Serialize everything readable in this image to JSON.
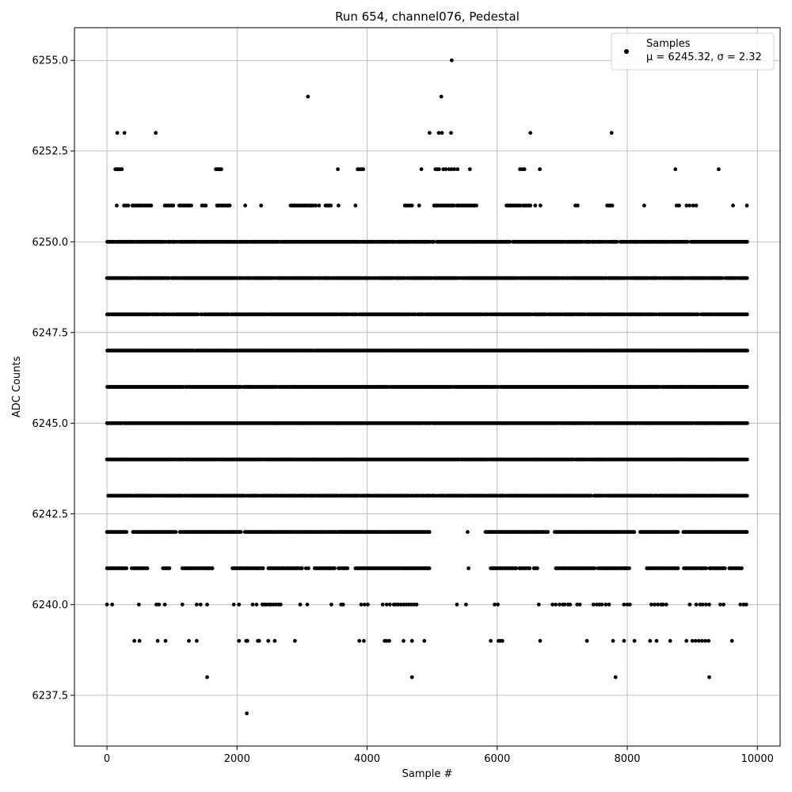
{
  "chart_data": {
    "type": "scatter",
    "title": "Run 654, channel076, Pedestal",
    "xlabel": "Sample #",
    "ylabel": "ADC Counts",
    "xlim": [
      -500,
      10350
    ],
    "ylim": [
      6236.1,
      6255.9
    ],
    "xticks": [
      0,
      2000,
      4000,
      6000,
      8000,
      10000
    ],
    "xtick_labels": [
      "0",
      "2000",
      "4000",
      "6000",
      "8000",
      "10000"
    ],
    "yticks": [
      6237.5,
      6240.0,
      6242.5,
      6245.0,
      6247.5,
      6250.0,
      6252.5,
      6255.0
    ],
    "ytick_labels": [
      "6237.5",
      "6240.0",
      "6242.5",
      "6245.0",
      "6247.5",
      "6250.0",
      "6252.5",
      "6255.0"
    ],
    "grid": true,
    "legend": {
      "position": "top-right",
      "entries": [
        {
          "marker": "dot",
          "line1": "Samples",
          "line2": "μ = 6245.32, σ = 2.32"
        }
      ]
    },
    "series": [
      {
        "name": "Samples",
        "color": "#000000",
        "n_points": 9856,
        "x_range": [
          0,
          9855
        ],
        "levels": {
          "6237": [
            2150
          ],
          "6238": [
            1540,
            4690,
            7820,
            9260
          ],
          "6239": [
            420,
            500,
            780,
            900,
            1260,
            1380,
            2030,
            2140,
            2160,
            2320,
            2340,
            2480,
            2580,
            2890,
            3880,
            3950,
            4270,
            4300,
            4340,
            4560,
            4690,
            4880,
            5900,
            6020,
            6050,
            6080,
            6660,
            7380,
            7780,
            7950,
            8110,
            8350,
            8450,
            8660,
            8910,
            9000,
            9050,
            9100,
            9150,
            9200,
            9250,
            9610
          ],
          "6240": [
            0,
            80,
            490,
            760,
            800,
            890,
            1160,
            1380,
            1440,
            1540,
            1950,
            2030,
            2240,
            2300,
            2390,
            2420,
            2450,
            2490,
            2520,
            2560,
            2600,
            2640,
            2670,
            2970,
            3080,
            3450,
            3600,
            3630,
            3910,
            3960,
            4010,
            4240,
            4300,
            4350,
            4410,
            4440,
            4480,
            4520,
            4560,
            4600,
            4640,
            4680,
            4720,
            4760,
            5380,
            5520,
            5960,
            6010,
            6640,
            6850,
            6900,
            6960,
            7010,
            7040,
            7090,
            7120,
            7230,
            7270,
            7480,
            7530,
            7570,
            7610,
            7670,
            7720,
            7950,
            8000,
            8040,
            8370,
            8420,
            8470,
            8520,
            8550,
            8600,
            8960,
            9060,
            9120,
            9160,
            9210,
            9260,
            9430,
            9480,
            9740,
            9790,
            9830
          ],
          "6253": [
            160,
            270,
            750,
            4960,
            5100,
            5150,
            5290,
            6510,
            7760
          ],
          "6254": [
            3090,
            5140
          ],
          "6255": [
            5300
          ]
        },
        "sparse_levels": {
          "6241": {
            "ranges": [
              [
                0,
                300
              ],
              [
                380,
                620
              ],
              [
                860,
                960
              ],
              [
                1160,
                1620
              ],
              [
                1930,
                2400
              ],
              [
                2480,
                3000
              ],
              [
                3060,
                3100
              ],
              [
                3190,
                3500
              ],
              [
                3560,
                3700
              ],
              [
                3820,
                4960
              ],
              [
                5560,
                5560
              ],
              [
                5900,
                6290
              ],
              [
                6340,
                6500
              ],
              [
                6560,
                6620
              ],
              [
                6900,
                7500
              ],
              [
                7550,
                8030
              ],
              [
                8300,
                8780
              ],
              [
                8870,
                9210
              ],
              [
                9260,
                9500
              ],
              [
                9570,
                9760
              ]
            ]
          },
          "6242": {
            "ranges": [
              [
                0,
                300
              ],
              [
                400,
                1060
              ],
              [
                1120,
                2060
              ],
              [
                2120,
                2850
              ],
              [
                2880,
                3880
              ],
              [
                3590,
                4960
              ],
              [
                5530,
                5560
              ],
              [
                5820,
                6470
              ],
              [
                6500,
                6780
              ],
              [
                6880,
                8110
              ],
              [
                8200,
                8780
              ],
              [
                8860,
                9840
              ]
            ]
          },
          "6251": {
            "ranges": [
              [
                140,
                160
              ],
              [
                260,
                330
              ],
              [
                390,
                680
              ],
              [
                890,
                1020
              ],
              [
                1110,
                1300
              ],
              [
                1460,
                1520
              ],
              [
                1690,
                1890
              ],
              [
                2120,
                2130
              ],
              [
                2360,
                2380
              ],
              [
                2820,
                3170
              ],
              [
                3210,
                3260
              ],
              [
                3360,
                3440
              ],
              [
                3550,
                3570
              ],
              [
                3810,
                3830
              ],
              [
                4580,
                4690
              ],
              [
                4800,
                4800
              ],
              [
                5030,
                5340
              ],
              [
                5380,
                5680
              ],
              [
                6140,
                6360
              ],
              [
                6400,
                6510
              ],
              [
                6570,
                6600
              ],
              [
                6650,
                6680
              ],
              [
                7200,
                7240
              ],
              [
                7690,
                7770
              ],
              [
                8250,
                8270
              ],
              [
                8760,
                8800
              ],
              [
                8910,
                8960
              ],
              [
                9010,
                9060
              ],
              [
                9620,
                9630
              ],
              [
                9840,
                9840
              ]
            ]
          },
          "6252": {
            "ranges": [
              [
                130,
                230
              ],
              [
                1670,
                1760
              ],
              [
                3540,
                3560
              ],
              [
                3850,
                3940
              ],
              [
                4830,
                4840
              ],
              [
                5050,
                5110
              ],
              [
                5170,
                5210
              ],
              [
                5260,
                5300
              ],
              [
                5340,
                5390
              ],
              [
                5570,
                5590
              ],
              [
                6350,
                6420
              ],
              [
                6640,
                6670
              ],
              [
                8730,
                8750
              ],
              [
                9400,
                9410
              ]
            ]
          }
        },
        "dense_levels": [
          6243,
          6244,
          6245,
          6246,
          6247,
          6248,
          6249,
          6250
        ]
      }
    ]
  }
}
